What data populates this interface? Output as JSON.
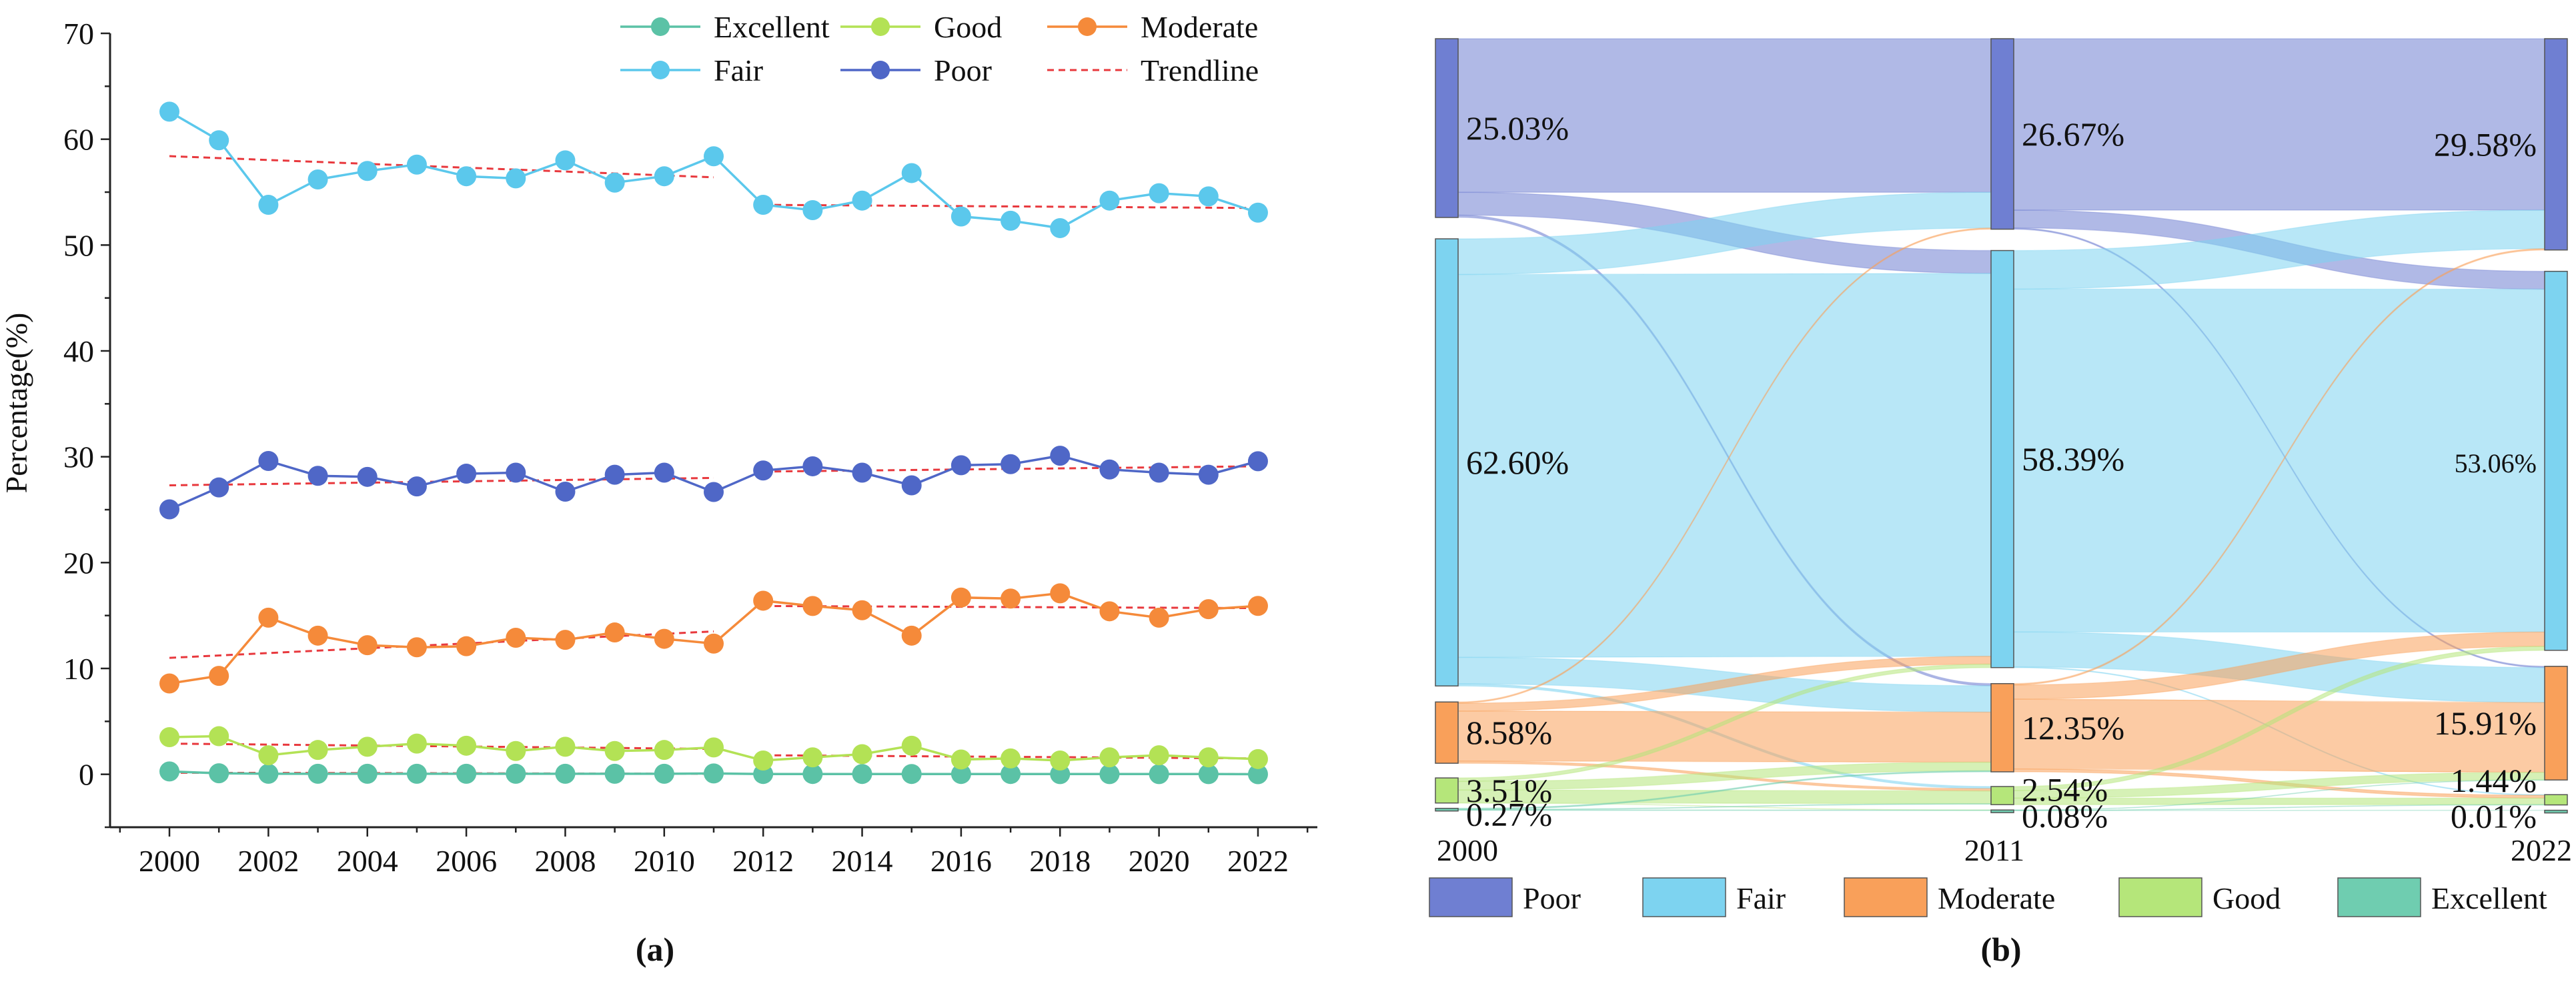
{
  "chart_data": [
    {
      "type": "line",
      "panel_label": "(a)",
      "title": "",
      "xlabel": "",
      "ylabel": "Percentage(%)",
      "xlim": [
        1998.8,
        2023.2
      ],
      "ylim": [
        -5,
        70
      ],
      "xticks": [
        2000,
        2002,
        2004,
        2006,
        2008,
        2010,
        2012,
        2014,
        2016,
        2018,
        2020,
        2022
      ],
      "yticks": [
        0,
        10,
        20,
        30,
        40,
        50,
        60,
        70
      ],
      "x": [
        2000,
        2001,
        2002,
        2003,
        2004,
        2005,
        2006,
        2007,
        2008,
        2009,
        2010,
        2011,
        2012,
        2013,
        2014,
        2015,
        2016,
        2017,
        2018,
        2019,
        2020,
        2021,
        2022
      ],
      "series": [
        {
          "name": "Excellent",
          "color": "#5BC2A6",
          "values": [
            0.27,
            0.1,
            0.05,
            0.05,
            0.05,
            0.05,
            0.05,
            0.05,
            0.05,
            0.05,
            0.05,
            0.08,
            0.03,
            0.03,
            0.03,
            0.03,
            0.03,
            0.03,
            0.02,
            0.02,
            0.02,
            0.02,
            0.01
          ]
        },
        {
          "name": "Good",
          "color": "#B3E255",
          "values": [
            3.51,
            3.6,
            1.8,
            2.3,
            2.6,
            2.9,
            2.7,
            2.2,
            2.6,
            2.2,
            2.3,
            2.54,
            1.3,
            1.6,
            1.9,
            2.7,
            1.4,
            1.5,
            1.3,
            1.6,
            1.8,
            1.6,
            1.44
          ]
        },
        {
          "name": "Moderate",
          "color": "#F58A3A",
          "values": [
            8.58,
            9.3,
            14.8,
            13.1,
            12.2,
            12.0,
            12.1,
            12.9,
            12.7,
            13.4,
            12.8,
            12.35,
            16.4,
            15.9,
            15.5,
            13.1,
            16.7,
            16.6,
            17.1,
            15.4,
            14.8,
            15.6,
            15.91
          ]
        },
        {
          "name": "Fair",
          "color": "#5BC8EC",
          "values": [
            62.6,
            59.9,
            53.8,
            56.2,
            57.0,
            57.6,
            56.5,
            56.3,
            58.0,
            55.9,
            56.5,
            58.39,
            53.8,
            53.3,
            54.2,
            56.8,
            52.7,
            52.3,
            51.6,
            54.2,
            54.9,
            54.6,
            53.06
          ]
        },
        {
          "name": "Poor",
          "color": "#4F67C7",
          "values": [
            25.03,
            27.1,
            29.6,
            28.2,
            28.1,
            27.2,
            28.4,
            28.5,
            26.7,
            28.3,
            28.5,
            26.67,
            28.7,
            29.1,
            28.5,
            27.3,
            29.2,
            29.3,
            30.1,
            28.8,
            28.5,
            28.3,
            29.58
          ]
        }
      ],
      "trendline": {
        "name": "Trendline",
        "color": "#E8383D",
        "segments": [
          {
            "series": "Fair",
            "from": [
              2000,
              58.4
            ],
            "to": [
              2011,
              56.4
            ]
          },
          {
            "series": "Fair",
            "from": [
              2012,
              53.8
            ],
            "to": [
              2022,
              53.5
            ]
          },
          {
            "series": "Poor",
            "from": [
              2000,
              27.3
            ],
            "to": [
              2011,
              28.0
            ]
          },
          {
            "series": "Poor",
            "from": [
              2012,
              28.6
            ],
            "to": [
              2022,
              29.1
            ]
          },
          {
            "series": "Moderate",
            "from": [
              2000,
              11.0
            ],
            "to": [
              2011,
              13.5
            ]
          },
          {
            "series": "Moderate",
            "from": [
              2012,
              15.9
            ],
            "to": [
              2022,
              15.7
            ]
          },
          {
            "series": "Good",
            "from": [
              2000,
              2.9
            ],
            "to": [
              2011,
              2.4
            ]
          },
          {
            "series": "Good",
            "from": [
              2012,
              1.8
            ],
            "to": [
              2022,
              1.5
            ]
          },
          {
            "series": "Excellent",
            "from": [
              2000,
              0.15
            ],
            "to": [
              2011,
              0.05
            ]
          },
          {
            "series": "Excellent",
            "from": [
              2012,
              0.03
            ],
            "to": [
              2022,
              0.02
            ]
          }
        ]
      },
      "legend": [
        "Excellent",
        "Good",
        "Moderate",
        "Fair",
        "Poor",
        "Trendline"
      ],
      "legend_position": "top"
    },
    {
      "type": "sankey",
      "panel_label": "(b)",
      "stages": [
        "2000",
        "2011",
        "2022"
      ],
      "categories": [
        "Poor",
        "Fair",
        "Moderate",
        "Good",
        "Excellent"
      ],
      "colors": {
        "Poor": "#6F7FD2",
        "Fair": "#7DD3F0",
        "Moderate": "#F9A05A",
        "Good": "#B5E67A",
        "Excellent": "#6FCDB0"
      },
      "values": {
        "2000": {
          "Poor": 25.03,
          "Fair": 62.6,
          "Moderate": 8.58,
          "Good": 3.51,
          "Excellent": 0.27
        },
        "2011": {
          "Poor": 26.67,
          "Fair": 58.39,
          "Moderate": 12.35,
          "Good": 2.54,
          "Excellent": 0.08
        },
        "2022": {
          "Poor": 29.58,
          "Fair": 53.06,
          "Moderate": 15.91,
          "Good": 1.44,
          "Excellent": 0.01
        }
      },
      "labels": {
        "2000": {
          "Poor": "25.03%",
          "Fair": "62.60%",
          "Moderate": "8.58%",
          "Good": "3.51%",
          "Excellent": "0.27%"
        },
        "2011": {
          "Poor": "26.67%",
          "Fair": "58.39%",
          "Moderate": "12.35%",
          "Good": "2.54%",
          "Excellent": "0.08%"
        },
        "2022": {
          "Poor": "29.58%",
          "Fair": "53.06%",
          "Moderate": "15.91%",
          "Good": "1.44%",
          "Excellent": "0.01%"
        }
      },
      "flows": [
        {
          "from": "2000",
          "to": "2011",
          "source": "Poor",
          "target": "Poor",
          "value": 21.5
        },
        {
          "from": "2000",
          "to": "2011",
          "source": "Poor",
          "target": "Fair",
          "value": 3.2
        },
        {
          "from": "2000",
          "to": "2011",
          "source": "Poor",
          "target": "Moderate",
          "value": 0.3
        },
        {
          "from": "2000",
          "to": "2011",
          "source": "Fair",
          "target": "Poor",
          "value": 5.0
        },
        {
          "from": "2000",
          "to": "2011",
          "source": "Fair",
          "target": "Fair",
          "value": 53.6
        },
        {
          "from": "2000",
          "to": "2011",
          "source": "Fair",
          "target": "Moderate",
          "value": 3.7
        },
        {
          "from": "2000",
          "to": "2011",
          "source": "Fair",
          "target": "Good",
          "value": 0.3
        },
        {
          "from": "2000",
          "to": "2011",
          "source": "Moderate",
          "target": "Poor",
          "value": 0.17
        },
        {
          "from": "2000",
          "to": "2011",
          "source": "Moderate",
          "target": "Fair",
          "value": 1.1
        },
        {
          "from": "2000",
          "to": "2011",
          "source": "Moderate",
          "target": "Moderate",
          "value": 7.0
        },
        {
          "from": "2000",
          "to": "2011",
          "source": "Moderate",
          "target": "Good",
          "value": 0.31
        },
        {
          "from": "2000",
          "to": "2011",
          "source": "Good",
          "target": "Fair",
          "value": 0.49
        },
        {
          "from": "2000",
          "to": "2011",
          "source": "Good",
          "target": "Moderate",
          "value": 1.2
        },
        {
          "from": "2000",
          "to": "2011",
          "source": "Good",
          "target": "Good",
          "value": 1.8
        },
        {
          "from": "2000",
          "to": "2011",
          "source": "Good",
          "target": "Excellent",
          "value": 0.02
        },
        {
          "from": "2000",
          "to": "2011",
          "source": "Excellent",
          "target": "Moderate",
          "value": 0.15
        },
        {
          "from": "2000",
          "to": "2011",
          "source": "Excellent",
          "target": "Good",
          "value": 0.06
        },
        {
          "from": "2000",
          "to": "2011",
          "source": "Excellent",
          "target": "Excellent",
          "value": 0.06
        },
        {
          "from": "2011",
          "to": "2022",
          "source": "Poor",
          "target": "Poor",
          "value": 24.0
        },
        {
          "from": "2011",
          "to": "2022",
          "source": "Poor",
          "target": "Fair",
          "value": 2.5
        },
        {
          "from": "2011",
          "to": "2022",
          "source": "Poor",
          "target": "Moderate",
          "value": 0.17
        },
        {
          "from": "2011",
          "to": "2022",
          "source": "Fair",
          "target": "Poor",
          "value": 5.4
        },
        {
          "from": "2011",
          "to": "2022",
          "source": "Fair",
          "target": "Fair",
          "value": 48.0
        },
        {
          "from": "2011",
          "to": "2022",
          "source": "Fair",
          "target": "Moderate",
          "value": 4.9
        },
        {
          "from": "2011",
          "to": "2022",
          "source": "Fair",
          "target": "Good",
          "value": 0.09
        },
        {
          "from": "2011",
          "to": "2022",
          "source": "Moderate",
          "target": "Poor",
          "value": 0.18
        },
        {
          "from": "2011",
          "to": "2022",
          "source": "Moderate",
          "target": "Fair",
          "value": 2.0
        },
        {
          "from": "2011",
          "to": "2022",
          "source": "Moderate",
          "target": "Moderate",
          "value": 9.77
        },
        {
          "from": "2011",
          "to": "2022",
          "source": "Moderate",
          "target": "Good",
          "value": 0.4
        },
        {
          "from": "2011",
          "to": "2022",
          "source": "Good",
          "target": "Fair",
          "value": 0.56
        },
        {
          "from": "2011",
          "to": "2022",
          "source": "Good",
          "target": "Moderate",
          "value": 1.07
        },
        {
          "from": "2011",
          "to": "2022",
          "source": "Good",
          "target": "Good",
          "value": 0.91
        },
        {
          "from": "2011",
          "to": "2022",
          "source": "Excellent",
          "target": "Good",
          "value": 0.04
        },
        {
          "from": "2011",
          "to": "2022",
          "source": "Excellent",
          "target": "Moderate",
          "value": 0.03
        },
        {
          "from": "2011",
          "to": "2022",
          "source": "Excellent",
          "target": "Excellent",
          "value": 0.01
        }
      ],
      "legend": [
        "Poor",
        "Fair",
        "Moderate",
        "Good",
        "Excellent"
      ],
      "legend_position": "bottom"
    }
  ]
}
